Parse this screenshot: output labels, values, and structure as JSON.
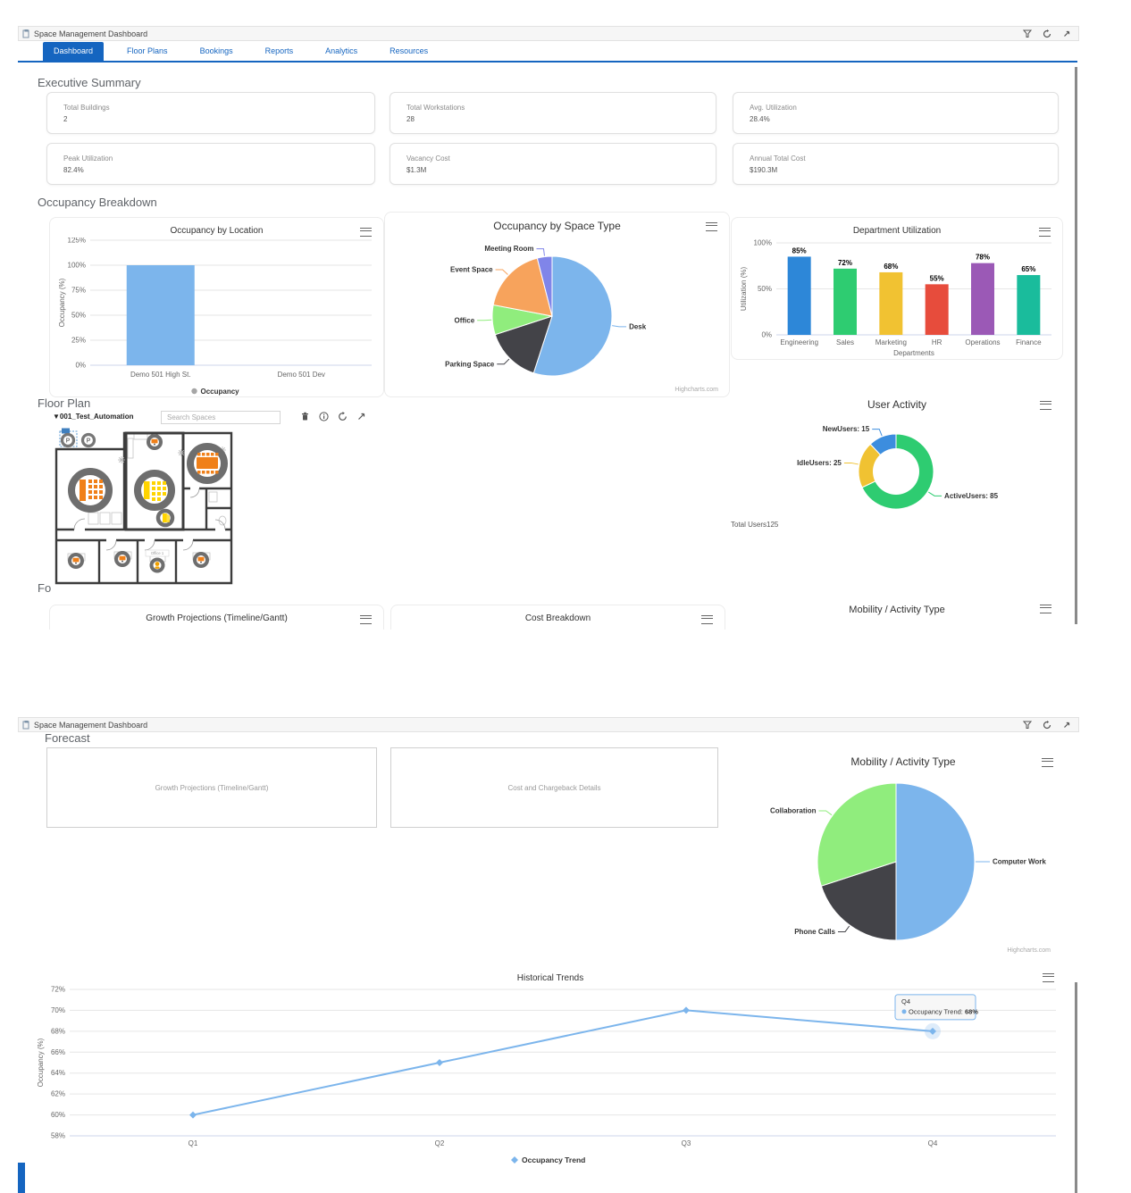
{
  "titlebar": {
    "title": "Space Management Dashboard"
  },
  "tabs": [
    {
      "label": "Dashboard",
      "active": true
    },
    {
      "label": "Floor Plans"
    },
    {
      "label": "Bookings"
    },
    {
      "label": "Reports"
    },
    {
      "label": "Analytics"
    },
    {
      "label": "Resources"
    }
  ],
  "headings": {
    "executive_summary": "Executive Summary",
    "occupancy_breakdown": "Occupancy Breakdown",
    "floor_plan": "Floor Plan",
    "forecast_partial": "Fo",
    "forecast": "Forecast"
  },
  "summary_cards": [
    {
      "label": "Total Buildings",
      "value": "2"
    },
    {
      "label": "Total Workstations",
      "value": "28"
    },
    {
      "label": "Avg. Utilization",
      "value": "28.4%"
    },
    {
      "label": "Peak Utilization",
      "value": "82.4%"
    },
    {
      "label": "Vacancy Cost",
      "value": "$1.3M"
    },
    {
      "label": "Annual Total Cost",
      "value": "$190.3M"
    }
  ],
  "floor_plan": {
    "selector": "001_Test_Automation",
    "search_placeholder": "Search Spaces",
    "room_label": "Office 1"
  },
  "stub_cards": {
    "growth": "Growth Projections (Timeline/Gantt)",
    "cost": "Cost Breakdown",
    "mobility": "Mobility / Activity Type"
  },
  "forecast_boxes": [
    {
      "label": "Growth Projections (Timeline/Gantt)"
    },
    {
      "label": "Cost and Chargeback Details"
    }
  ],
  "credits": "Highcharts.com",
  "colors": {
    "accent": "#1565c0",
    "series_blue": "#7cb5ec",
    "series_dark": "#434348",
    "series_green": "#90ed7d",
    "series_orange": "#f7a35c",
    "series_purple": "#8085e9"
  },
  "chart_data": [
    {
      "name": "occupancy_by_location",
      "type": "bar",
      "title": "Occupancy by Location",
      "categories": [
        "Demo 501 High St.",
        "Demo 501 Dev"
      ],
      "values": [
        100,
        0
      ],
      "ylabel": "Occupancy (%)",
      "ylim": [
        0,
        125
      ],
      "ytick_step": 25,
      "bar_color": "#7cb5ec",
      "legend": [
        {
          "label": "Occupancy",
          "color": "#a6a6a6"
        }
      ],
      "grid": true,
      "legend_position": "bottom"
    },
    {
      "name": "occupancy_by_space_type",
      "type": "pie",
      "title": "Occupancy by Space Type",
      "slices": [
        {
          "label": "Desk",
          "value": 55,
          "color": "#7cb5ec"
        },
        {
          "label": "Parking Space",
          "value": 15,
          "color": "#434348"
        },
        {
          "label": "Office",
          "value": 8,
          "color": "#90ed7d"
        },
        {
          "label": "Event Space",
          "value": 18,
          "color": "#f7a35c"
        },
        {
          "label": "Meeting Room",
          "value": 4,
          "color": "#8085e9"
        }
      ]
    },
    {
      "name": "department_utilization",
      "type": "column",
      "title": "Department Utilization",
      "categories": [
        "Engineering",
        "Sales",
        "Marketing",
        "HR",
        "Operations",
        "Finance"
      ],
      "values": [
        85,
        72,
        68,
        55,
        78,
        65
      ],
      "colors": [
        "#2d87d8",
        "#2ecc71",
        "#f1c232",
        "#e74c3c",
        "#9b59b6",
        "#1abc9c"
      ],
      "data_labels": [
        "85%",
        "72%",
        "68%",
        "55%",
        "78%",
        "65%"
      ],
      "xlabel": "Departments",
      "ylabel": "Utilization (%)",
      "ylim": [
        0,
        100
      ],
      "ytick_step": 50,
      "grid": true
    },
    {
      "name": "user_activity",
      "type": "donut",
      "title": "User Activity",
      "slices": [
        {
          "label": "ActiveUsers",
          "value": 85,
          "color": "#2ecc71"
        },
        {
          "label": "IdleUsers",
          "value": 25,
          "color": "#f0c232"
        },
        {
          "label": "NewUsers",
          "value": 15,
          "color": "#3c8dde"
        }
      ],
      "total_label": "Total Users125"
    },
    {
      "name": "mobility_activity_type",
      "type": "pie",
      "title": "Mobility / Activity Type",
      "slices": [
        {
          "label": "Computer Work",
          "value": 50,
          "color": "#7cb5ec"
        },
        {
          "label": "Phone Calls",
          "value": 20,
          "color": "#434348"
        },
        {
          "label": "Collaboration",
          "value": 30,
          "color": "#90ed7d"
        }
      ]
    },
    {
      "name": "historical_trends",
      "type": "line",
      "title": "Historical Trends",
      "categories": [
        "Q1",
        "Q2",
        "Q3",
        "Q4"
      ],
      "values": [
        60,
        65,
        70,
        68
      ],
      "series_name": "Occupancy Trend",
      "color": "#7cb5ec",
      "ylabel": "Occupancy (%)",
      "ylim": [
        58,
        72
      ],
      "ytick_step": 2,
      "grid": true,
      "legend_position": "bottom",
      "tooltip": {
        "category": "Q4",
        "series": "Occupancy Trend",
        "value": "68%"
      }
    }
  ]
}
